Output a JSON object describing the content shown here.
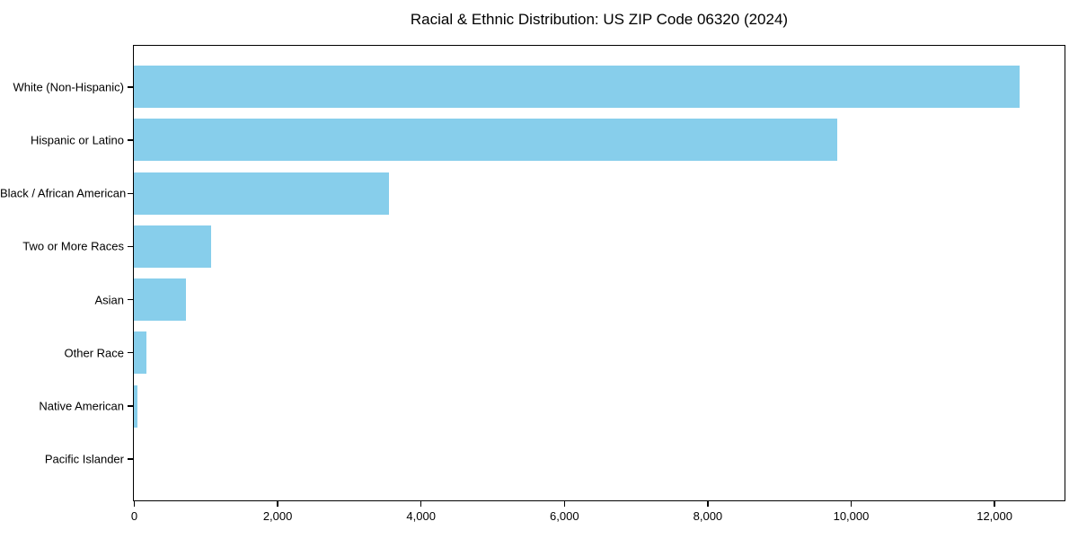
{
  "chart_data": {
    "type": "bar",
    "orientation": "horizontal",
    "title": "Racial & Ethnic Distribution: US ZIP Code 06320 (2024)",
    "categories": [
      "White (Non-Hispanic)",
      "Hispanic or Latino",
      "Black / African American",
      "Two or More Races",
      "Asian",
      "Other Race",
      "Native American",
      "Pacific Islander"
    ],
    "values": [
      12350,
      9800,
      3560,
      1080,
      720,
      180,
      50,
      0
    ],
    "xlabel": "",
    "ylabel": "",
    "xlim": [
      0,
      12970
    ],
    "x_ticks": {
      "values": [
        0,
        2000,
        4000,
        6000,
        8000,
        10000,
        12000
      ],
      "labels": [
        "0",
        "2,000",
        "4,000",
        "6,000",
        "8,000",
        "10,000",
        "12,000"
      ]
    },
    "bar_color": "#87CEEB",
    "axis_color": "#000000",
    "background_color": "#ffffff",
    "grid": false,
    "legend": "none"
  }
}
